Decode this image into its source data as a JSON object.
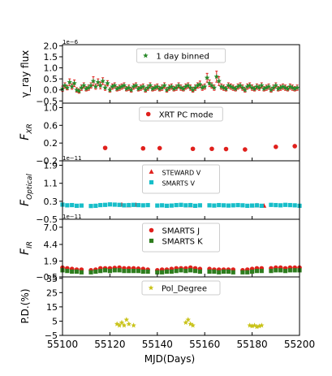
{
  "xaxis": {
    "label": "MJD(Days)",
    "range": [
      55100,
      55200
    ],
    "ticks": [
      55100,
      55120,
      55140,
      55160,
      55180,
      55200
    ],
    "tick_labels": [
      "55100",
      "55120",
      "55140",
      "55160",
      "55180",
      "55200"
    ]
  },
  "chart_data": [
    {
      "type": "scatter",
      "ylabel": "γ_ray flux",
      "offset_text": "1e−6",
      "ylim": [
        -0.6,
        2.05
      ],
      "ticks": [
        -0.5,
        0.0,
        0.5,
        1.0,
        1.5,
        2.0
      ],
      "tick_labels": [
        "−0.5",
        "0.0",
        "0.5",
        "1.0",
        "1.5",
        "2.0"
      ],
      "legend": "top-center",
      "series": [
        {
          "name": "1 day binned",
          "color": "#2a8a2a",
          "err_color": "#e0201c",
          "marker": "star",
          "x": [
            55100,
            55101,
            55102,
            55103,
            55104,
            55105,
            55106,
            55107,
            55108,
            55109,
            55110,
            55111,
            55112,
            55113,
            55114,
            55115,
            55116,
            55117,
            55118,
            55119,
            55120,
            55121,
            55122,
            55123,
            55124,
            55125,
            55126,
            55127,
            55128,
            55129,
            55130,
            55131,
            55132,
            55133,
            55134,
            55135,
            55136,
            55137,
            55138,
            55139,
            55140,
            55141,
            55142,
            55143,
            55144,
            55145,
            55146,
            55147,
            55148,
            55149,
            55150,
            55151,
            55152,
            55153,
            55154,
            55155,
            55156,
            55157,
            55158,
            55159,
            55160,
            55161,
            55162,
            55163,
            55164,
            55165,
            55166,
            55167,
            55168,
            55169,
            55170,
            55171,
            55172,
            55173,
            55174,
            55175,
            55176,
            55177,
            55178,
            55179,
            55180,
            55181,
            55182,
            55183,
            55184,
            55185,
            55186,
            55187,
            55188,
            55189,
            55190,
            55191,
            55192,
            55193,
            55194,
            55195,
            55196,
            55197,
            55198,
            55199
          ],
          "y": [
            0.05,
            0.2,
            0.1,
            0.35,
            0.15,
            0.3,
            0.0,
            -0.05,
            0.1,
            0.2,
            0.05,
            0.1,
            0.2,
            0.4,
            0.15,
            0.35,
            0.2,
            0.4,
            0.1,
            0.3,
            0.0,
            0.15,
            0.2,
            0.05,
            0.1,
            0.15,
            0.2,
            0.05,
            0.1,
            0.0,
            0.15,
            0.2,
            0.05,
            0.1,
            0.15,
            0.0,
            0.1,
            0.2,
            0.05,
            0.1,
            0.15,
            0.05,
            0.1,
            0.2,
            0.0,
            0.1,
            0.15,
            0.05,
            0.1,
            0.2,
            0.1,
            0.05,
            0.15,
            0.2,
            0.1,
            0.0,
            0.1,
            0.2,
            0.25,
            0.1,
            0.15,
            0.55,
            0.3,
            0.2,
            0.1,
            0.6,
            0.4,
            0.15,
            0.1,
            0.05,
            0.2,
            0.15,
            0.1,
            0.05,
            0.15,
            0.2,
            0.1,
            0.0,
            0.15,
            0.2,
            0.1,
            0.05,
            0.15,
            0.1,
            0.2,
            0.05,
            0.1,
            0.15,
            0.0,
            0.1,
            0.2,
            0.05,
            0.1,
            0.15,
            0.1,
            0.05,
            0.15,
            0.1,
            0.05,
            0.1
          ],
          "err": [
            0.12,
            0.12,
            0.1,
            0.15,
            0.12,
            0.15,
            0.1,
            0.1,
            0.12,
            0.12,
            0.1,
            0.12,
            0.12,
            0.2,
            0.12,
            0.15,
            0.15,
            0.15,
            0.12,
            0.12,
            0.1,
            0.12,
            0.12,
            0.1,
            0.12,
            0.12,
            0.12,
            0.1,
            0.12,
            0.1,
            0.12,
            0.12,
            0.1,
            0.12,
            0.12,
            0.1,
            0.12,
            0.12,
            0.1,
            0.12,
            0.12,
            0.1,
            0.12,
            0.12,
            0.1,
            0.12,
            0.12,
            0.1,
            0.12,
            0.12,
            0.12,
            0.1,
            0.12,
            0.12,
            0.12,
            0.1,
            0.12,
            0.12,
            0.15,
            0.12,
            0.12,
            0.2,
            0.15,
            0.12,
            0.12,
            0.25,
            0.2,
            0.12,
            0.12,
            0.1,
            0.12,
            0.12,
            0.12,
            0.1,
            0.12,
            0.12,
            0.12,
            0.1,
            0.12,
            0.12,
            0.12,
            0.1,
            0.12,
            0.12,
            0.12,
            0.1,
            0.12,
            0.12,
            0.1,
            0.12,
            0.12,
            0.1,
            0.12,
            0.12,
            0.12,
            0.1,
            0.12,
            0.12,
            0.1,
            0.12
          ]
        }
      ]
    },
    {
      "type": "scatter",
      "ylabel": "F_XR",
      "offset_text": "",
      "ylim": [
        -0.2,
        1.1
      ],
      "ticks": [
        -0.2,
        0.2,
        0.6,
        1.0
      ],
      "tick_labels": [
        "−0.2",
        "0.2",
        "0.6",
        "1.0"
      ],
      "legend": "top-center",
      "series": [
        {
          "name": "XRT PC mode",
          "color": "#e0201c",
          "marker": "circle",
          "x": [
            55118,
            55134,
            55141,
            55155,
            55163,
            55169,
            55177,
            55190,
            55198
          ],
          "y": [
            0.09,
            0.08,
            0.085,
            0.07,
            0.07,
            0.065,
            0.055,
            0.115,
            0.13
          ]
        }
      ]
    },
    {
      "type": "scatter",
      "ylabel": "F_Optical",
      "offset_text": "1e−11",
      "ylim": [
        -0.5,
        2.1
      ],
      "ticks": [
        -0.5,
        0.3,
        1.1,
        1.9
      ],
      "tick_labels": [
        "−0.5",
        "0.3",
        "1.1",
        "1.9"
      ],
      "legend": "top-center",
      "series": [
        {
          "name": "STEWARD V",
          "color": "#e0201c",
          "marker": "triangle",
          "x": [
            55125,
            55128,
            55131,
            55154,
            55182,
            55185
          ],
          "y": [
            0.15,
            0.12,
            0.14,
            0.12,
            0.12,
            0.1
          ]
        },
        {
          "name": "SMARTS V",
          "color": "#17bec9",
          "marker": "square",
          "x": [
            55100,
            55102,
            55104,
            55106,
            55108,
            55112,
            55114,
            55116,
            55118,
            55120,
            55122,
            55124,
            55126,
            55128,
            55130,
            55132,
            55134,
            55136,
            55140,
            55142,
            55144,
            55146,
            55148,
            55150,
            55152,
            55154,
            55156,
            55158,
            55162,
            55164,
            55166,
            55168,
            55170,
            55172,
            55174,
            55176,
            55178,
            55180,
            55182,
            55184,
            55188,
            55190,
            55192,
            55194,
            55196,
            55198,
            55200
          ],
          "y": [
            0.15,
            0.12,
            0.13,
            0.1,
            0.11,
            0.09,
            0.1,
            0.13,
            0.14,
            0.16,
            0.15,
            0.14,
            0.12,
            0.13,
            0.14,
            0.13,
            0.12,
            0.13,
            0.11,
            0.12,
            0.1,
            0.11,
            0.13,
            0.14,
            0.12,
            0.13,
            0.1,
            0.12,
            0.12,
            0.11,
            0.13,
            0.12,
            0.11,
            0.12,
            0.13,
            0.12,
            0.1,
            0.11,
            0.12,
            0.1,
            0.14,
            0.13,
            0.12,
            0.14,
            0.13,
            0.12,
            0.1
          ]
        }
      ]
    },
    {
      "type": "scatter",
      "ylabel": "F_IR",
      "offset_text": "1e−11",
      "ylim": [
        -0.5,
        8.2
      ],
      "ticks": [
        -0.5,
        1.9,
        4.4,
        7.0
      ],
      "tick_labels": [
        "−0.5",
        "1.9",
        "4.4",
        "7.0"
      ],
      "legend": "top-center",
      "series": [
        {
          "name": "SMARTS J",
          "color": "#e0201c",
          "marker": "circle",
          "x": [
            55100,
            55102,
            55104,
            55106,
            55108,
            55112,
            55114,
            55116,
            55118,
            55120,
            55122,
            55124,
            55126,
            55128,
            55130,
            55132,
            55134,
            55136,
            55140,
            55142,
            55144,
            55146,
            55148,
            55150,
            55152,
            55154,
            55156,
            55158,
            55162,
            55164,
            55166,
            55168,
            55170,
            55172,
            55176,
            55178,
            55180,
            55182,
            55184,
            55188,
            55190,
            55192,
            55194,
            55196,
            55198,
            55200
          ],
          "y": [
            0.9,
            0.8,
            0.7,
            0.6,
            0.6,
            0.5,
            0.6,
            0.8,
            0.8,
            0.8,
            0.85,
            0.9,
            0.8,
            0.8,
            0.8,
            0.75,
            0.7,
            0.6,
            0.5,
            0.6,
            0.6,
            0.7,
            0.8,
            0.8,
            0.8,
            0.9,
            0.8,
            0.7,
            0.7,
            0.6,
            0.6,
            0.6,
            0.6,
            0.6,
            0.5,
            0.6,
            0.7,
            0.8,
            0.8,
            0.8,
            0.9,
            0.9,
            0.8,
            0.9,
            0.9,
            0.9
          ]
        },
        {
          "name": "SMARTS K",
          "color": "#2e7d1e",
          "marker": "square",
          "x": [
            55100,
            55102,
            55104,
            55106,
            55108,
            55112,
            55114,
            55116,
            55118,
            55120,
            55122,
            55124,
            55126,
            55128,
            55130,
            55132,
            55134,
            55136,
            55140,
            55142,
            55144,
            55146,
            55148,
            55150,
            55152,
            55154,
            55156,
            55158,
            55162,
            55164,
            55166,
            55168,
            55170,
            55172,
            55176,
            55178,
            55180,
            55182,
            55184,
            55188,
            55190,
            55192,
            55194,
            55196,
            55198,
            55200
          ],
          "y": [
            0.5,
            0.4,
            0.3,
            0.3,
            0.2,
            0.2,
            0.3,
            0.4,
            0.5,
            0.4,
            0.5,
            0.5,
            0.4,
            0.4,
            0.4,
            0.4,
            0.3,
            0.3,
            0.2,
            0.2,
            0.3,
            0.3,
            0.4,
            0.5,
            0.4,
            0.5,
            0.4,
            0.3,
            0.3,
            0.3,
            0.2,
            0.3,
            0.3,
            0.2,
            0.2,
            0.2,
            0.3,
            0.4,
            0.4,
            0.4,
            0.5,
            0.5,
            0.4,
            0.5,
            0.5,
            0.5
          ]
        }
      ]
    },
    {
      "type": "scatter",
      "ylabel": "P.D.(%)",
      "offset_text": "",
      "ylim": [
        -5,
        36
      ],
      "ticks": [
        -5,
        5,
        15,
        25,
        35
      ],
      "tick_labels": [
        "−5",
        "5",
        "15",
        "25",
        "35"
      ],
      "legend": "top-center",
      "series": [
        {
          "name": "Pol_Degree",
          "color": "#c9c31a",
          "marker": "star",
          "x": [
            55123,
            55124,
            55125,
            55126,
            55127,
            55128,
            55130,
            55152,
            55153,
            55154,
            55155,
            55179,
            55180,
            55181,
            55182,
            55183,
            55184
          ],
          "y": [
            3,
            2,
            4,
            2,
            6,
            3,
            2,
            4,
            6,
            3,
            2,
            2,
            1.5,
            2,
            1,
            1.5,
            2
          ]
        }
      ]
    }
  ]
}
